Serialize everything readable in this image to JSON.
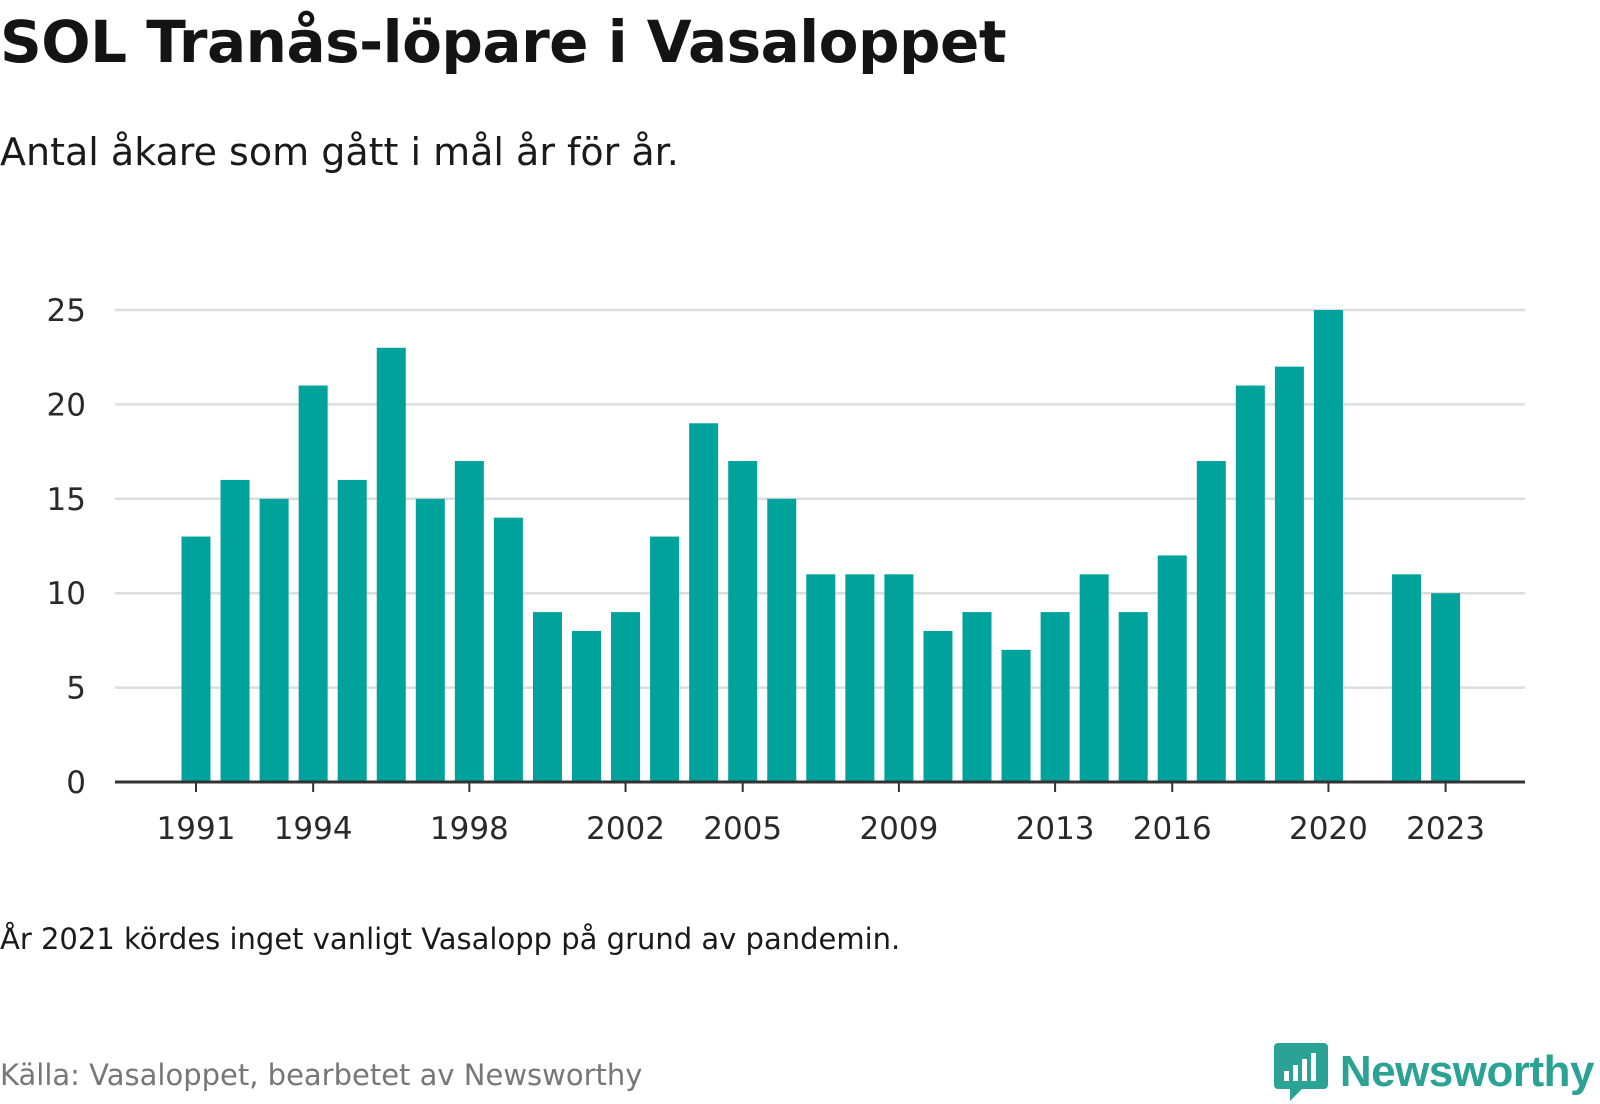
{
  "title": "SOL Tranås-löpare i Vasaloppet",
  "subtitle": "Antal åkare som gått i mål år för år.",
  "note": "År 2021 kördes inget vanligt Vasalopp på grund av pandemin.",
  "source": "Källa: Vasaloppet, bearbetet av Newsworthy",
  "brand": {
    "name": "Newsworthy",
    "icon": "newsworthy-logo-icon",
    "color": "#2aa394"
  },
  "chart_data": {
    "type": "bar",
    "x": [
      1991,
      1992,
      1993,
      1994,
      1995,
      1996,
      1997,
      1998,
      1999,
      2000,
      2001,
      2002,
      2003,
      2004,
      2005,
      2006,
      2007,
      2008,
      2009,
      2010,
      2011,
      2012,
      2013,
      2014,
      2015,
      2016,
      2017,
      2018,
      2019,
      2020,
      2021,
      2022,
      2023
    ],
    "values": [
      13,
      16,
      15,
      21,
      16,
      23,
      15,
      17,
      14,
      9,
      8,
      9,
      13,
      19,
      17,
      15,
      11,
      11,
      11,
      8,
      9,
      7,
      9,
      11,
      9,
      12,
      17,
      21,
      22,
      25,
      null,
      11,
      10
    ],
    "x_tick_labels": [
      "1991",
      "1994",
      "1998",
      "2002",
      "2005",
      "2009",
      "2013",
      "2016",
      "2020",
      "2023"
    ],
    "y_ticks": [
      0,
      5,
      10,
      15,
      20,
      25
    ],
    "ylim": [
      0,
      25
    ],
    "grid": true,
    "bar_color": "#00a39b",
    "grid_color": "#dddddd",
    "axis_color": "#333333"
  }
}
